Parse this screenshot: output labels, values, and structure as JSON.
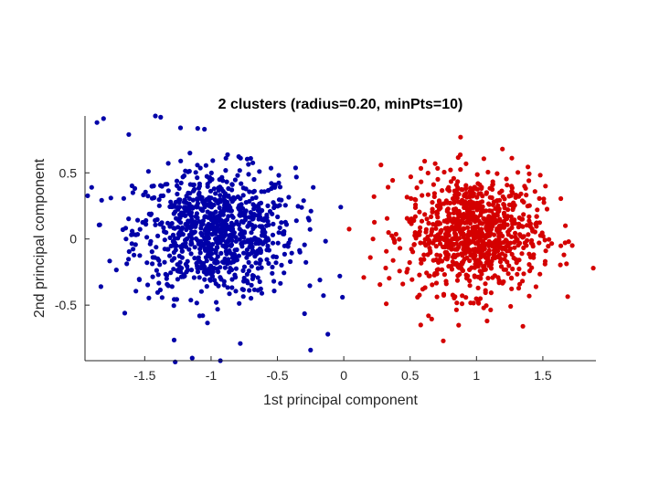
{
  "chart_data": {
    "type": "scatter",
    "title": "2 clusters (radius=0.20, minPts=10)",
    "xlabel": "1st principal component",
    "ylabel": "2nd principal component",
    "xlim": [
      -1.95,
      1.9
    ],
    "ylim": [
      -0.92,
      0.93
    ],
    "xticks": [
      -1.5,
      -1,
      -0.5,
      0,
      0.5,
      1,
      1.5
    ],
    "xtick_labels": [
      "-1.5",
      "-1",
      "-0.5",
      "0",
      "0.5",
      "1",
      "1.5"
    ],
    "yticks": [
      -0.5,
      0,
      0.5
    ],
    "ytick_labels": [
      "-0.5",
      "0",
      "0.5"
    ],
    "grid": false,
    "box": false,
    "series": [
      {
        "color": "#0000a8",
        "points_shown": 900,
        "center": [
          -0.97,
          0.05
        ],
        "spread": [
          0.3,
          0.24
        ],
        "outliers": [
          [
            -1.86,
            0.88
          ],
          [
            -1.81,
            0.91
          ],
          [
            -1.42,
            0.93
          ],
          [
            -1.38,
            0.92
          ],
          [
            -1.9,
            0.39
          ],
          [
            -1.83,
            -0.36
          ],
          [
            -1.27,
            -0.93
          ],
          [
            -0.93,
            -0.92
          ],
          [
            -0.78,
            -0.79
          ],
          [
            -0.25,
            -0.84
          ],
          [
            -0.12,
            -0.72
          ],
          [
            -0.18,
            -0.31
          ],
          [
            -0.23,
            0.39
          ],
          [
            -0.01,
            -0.44
          ],
          [
            -0.03,
            -0.28
          ],
          [
            -1.23,
            0.84
          ],
          [
            -1.05,
            0.83
          ],
          [
            -1.62,
            0.79
          ]
        ]
      },
      {
        "color": "#d40000",
        "points_shown": 900,
        "center": [
          0.98,
          0.04
        ],
        "spread": [
          0.25,
          0.22
        ],
        "outliers": [
          [
            1.88,
            -0.22
          ],
          [
            0.88,
            0.77
          ],
          [
            0.75,
            -0.77
          ],
          [
            0.28,
            0.56
          ],
          [
            0.2,
            -0.14
          ],
          [
            0.32,
            -0.49
          ],
          [
            1.67,
            0.1
          ],
          [
            1.35,
            -0.66
          ],
          [
            1.52,
            0.4
          ],
          [
            0.22,
            0.0
          ],
          [
            1.08,
            -0.62
          ],
          [
            0.58,
            -0.65
          ]
        ]
      }
    ]
  }
}
